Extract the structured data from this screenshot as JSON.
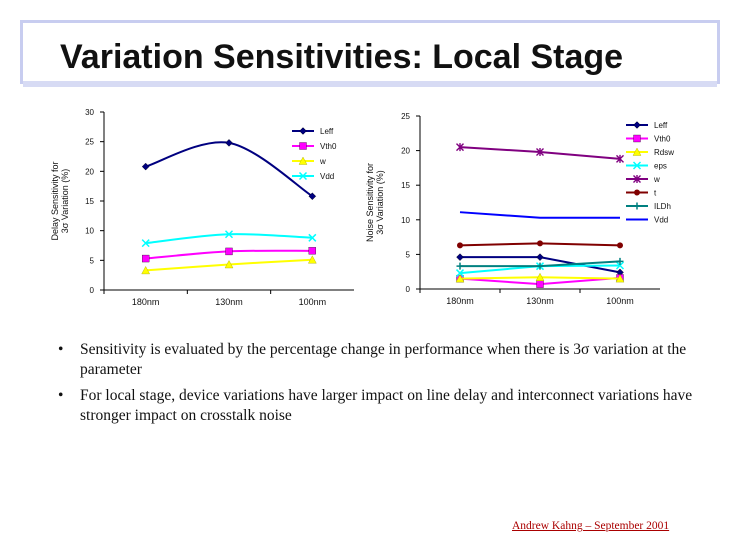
{
  "title": "Variation Sensitivities: Local Stage",
  "chart_data": [
    {
      "type": "line",
      "ylabel_lines": [
        "Delay Sensitivity for",
        "3σ Variation (%)"
      ],
      "categories": [
        "180nm",
        "130nm",
        "100nm"
      ],
      "ylim": [
        0,
        30
      ],
      "yticks": [
        0,
        5,
        10,
        15,
        20,
        25,
        30
      ],
      "legend_position": "top-right",
      "series": [
        {
          "name": "Leff",
          "values": [
            20.8,
            24.8,
            15.8
          ],
          "color": "#000080",
          "marker": "diamond"
        },
        {
          "name": "Vth0",
          "values": [
            5.3,
            6.5,
            6.6
          ],
          "color": "#ff00ff",
          "marker": "square"
        },
        {
          "name": "w",
          "values": [
            3.3,
            4.3,
            5.1
          ],
          "color": "#ffff00",
          "marker": "triangle"
        },
        {
          "name": "Vdd",
          "values": [
            7.9,
            9.4,
            8.8
          ],
          "color": "#00ffff",
          "marker": "x"
        }
      ]
    },
    {
      "type": "line",
      "ylabel_lines": [
        "Noise Sensitivity for",
        "3σ Variation (%)"
      ],
      "categories": [
        "180nm",
        "130nm",
        "100nm"
      ],
      "ylim": [
        0,
        25
      ],
      "yticks": [
        0,
        5,
        10,
        15,
        20,
        25
      ],
      "legend_position": "right",
      "series": [
        {
          "name": "Leff",
          "values": [
            4.6,
            4.6,
            2.4
          ],
          "color": "#000080",
          "marker": "diamond"
        },
        {
          "name": "Vth0",
          "values": [
            1.5,
            0.7,
            1.6
          ],
          "color": "#ff00ff",
          "marker": "square"
        },
        {
          "name": "Rdsw",
          "values": [
            1.5,
            1.7,
            1.5
          ],
          "color": "#ffff00",
          "marker": "triangle"
        },
        {
          "name": "eps",
          "values": [
            2.3,
            3.3,
            3.4
          ],
          "color": "#00ffff",
          "marker": "x"
        },
        {
          "name": "w",
          "values": [
            20.5,
            19.8,
            18.8
          ],
          "color": "#800080",
          "marker": "star"
        },
        {
          "name": "t",
          "values": [
            6.3,
            6.6,
            6.3
          ],
          "color": "#800000",
          "marker": "circle"
        },
        {
          "name": "ILDh",
          "values": [
            3.3,
            3.3,
            4.0
          ],
          "color": "#008080",
          "marker": "plus"
        },
        {
          "name": "Vdd",
          "values": [
            11.1,
            10.3,
            10.3
          ],
          "color": "#0000ff",
          "marker": "none"
        }
      ]
    }
  ],
  "bullets": [
    {
      "marker": "•",
      "text": "Sensitivity is evaluated by the percentage change in performance when there is 3σ variation at the parameter"
    },
    {
      "marker": "•",
      "text": "For  local stage, device variations have larger impact on line delay and interconnect variations have stronger impact on crosstalk noise"
    }
  ],
  "footer": "Andrew Kahng – September 2001"
}
